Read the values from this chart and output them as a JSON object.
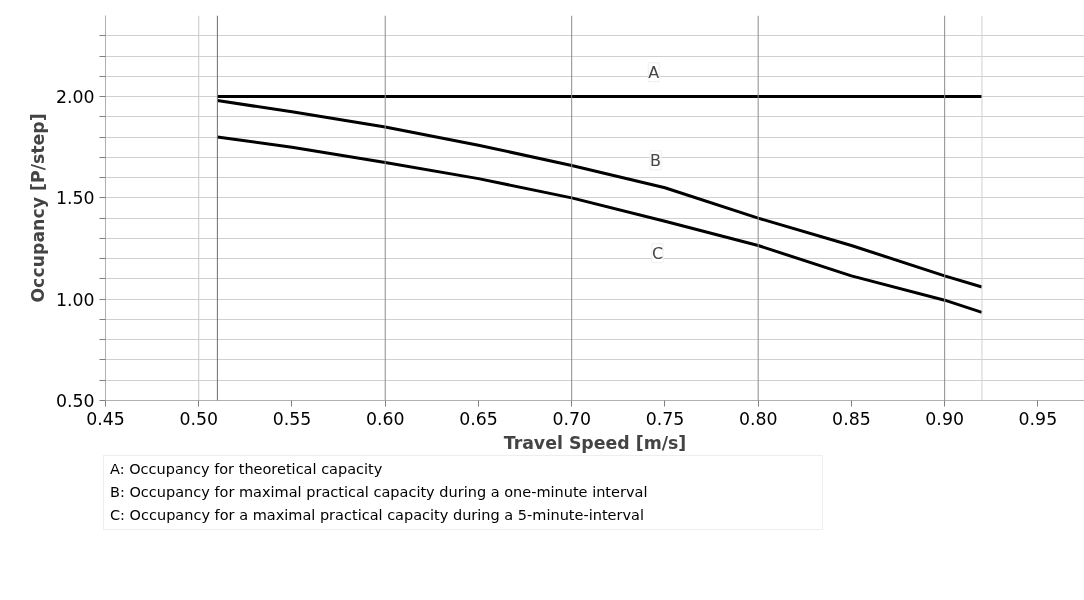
{
  "chart_data": {
    "type": "line",
    "xlabel": "Travel Speed [m/s]",
    "ylabel": "Occupancy [P/step]",
    "x": [
      0.51,
      0.55,
      0.6,
      0.65,
      0.7,
      0.75,
      0.8,
      0.85,
      0.9,
      0.92
    ],
    "series": [
      {
        "color": "#000000",
        "values": [
          2.0,
          2.0,
          2.0,
          2.0,
          2.0,
          2.0,
          2.0,
          2.0,
          2.0,
          2.0
        ]
      },
      {
        "color": "#000000",
        "values": [
          1.98,
          1.925,
          1.85,
          1.76,
          1.66,
          1.55,
          1.4,
          1.265,
          1.115,
          1.06
        ]
      },
      {
        "color": "#000000",
        "values": [
          1.8,
          1.75,
          1.675,
          1.595,
          1.5,
          1.385,
          1.265,
          1.115,
          0.995,
          0.935
        ]
      }
    ],
    "xlim": [
      0.45,
      0.975
    ],
    "ylim": [
      0.5,
      2.4
    ],
    "xticks": [
      0.45,
      {
        "value": 0.5,
        "label": "0.50"
      },
      0.55,
      {
        "value": 0.6,
        "label": "0.60"
      },
      0.65,
      {
        "value": 0.7,
        "label": "0.70"
      },
      0.75,
      {
        "value": 0.8,
        "label": "0.80"
      },
      0.85,
      {
        "value": 0.9,
        "label": "0.90"
      },
      0.95
    ],
    "yticks": [
      {
        "value": 0.5,
        "label": "0.50"
      },
      {
        "value": 0.6,
        "label": null
      },
      {
        "value": 0.7,
        "label": null
      },
      {
        "value": 0.8,
        "label": null
      },
      {
        "value": 0.9,
        "label": null
      },
      {
        "value": 1.0,
        "label": "1.00"
      },
      {
        "value": 1.1,
        "label": null
      },
      {
        "value": 1.2,
        "label": null
      },
      {
        "value": 1.3,
        "label": null
      },
      {
        "value": 1.4,
        "label": null
      },
      {
        "value": 1.5,
        "label": "1.50"
      },
      {
        "value": 1.6,
        "label": null
      },
      {
        "value": 1.7,
        "label": null
      },
      {
        "value": 1.8,
        "label": null
      },
      {
        "value": 1.9,
        "label": null
      },
      {
        "value": 2.0,
        "label": "2.00"
      },
      {
        "value": 2.1,
        "label": null
      },
      {
        "value": 2.2,
        "label": null
      },
      {
        "value": 2.3,
        "label": null
      }
    ],
    "grid": "y",
    "marker": "none",
    "line_style": "solid",
    "ref_lines": [
      {
        "axis": "x",
        "value": 0.5,
        "label": null,
        "color": "#c8c8c8"
      },
      {
        "axis": "x",
        "value": 0.6,
        "label": null,
        "color": "#8c8c8c"
      },
      {
        "axis": "x",
        "value": 0.7,
        "label": null,
        "color": "#8c8c8c"
      },
      {
        "axis": "x",
        "value": 0.8,
        "label": null,
        "color": "#8c8c8c"
      },
      {
        "axis": "x",
        "value": 0.9,
        "label": null,
        "color": "#8c8c8c"
      },
      {
        "axis": "x",
        "value": 0.51,
        "label": null,
        "color": "#6e6e6e"
      },
      {
        "axis": "x",
        "value": 0.92,
        "label": null,
        "color": "#d0d0d0"
      }
    ],
    "annotations": [
      {
        "text": "A",
        "x": 0.744,
        "y": 2.12
      },
      {
        "text": "B",
        "x": 0.745,
        "y": 1.685
      },
      {
        "text": "C",
        "x": 0.746,
        "y": 1.227
      },
      "A: Occupancy for theoretical capacity",
      "B: Occupancy for maximal practical capacity during a one-minute interval",
      "C: Occupancy for a maximal practical capacity during a 5-minute-interval"
    ]
  }
}
